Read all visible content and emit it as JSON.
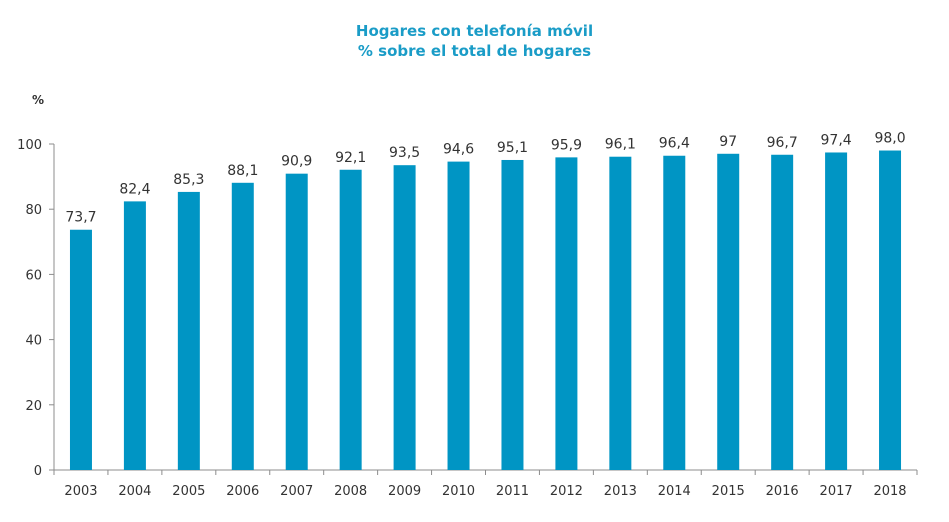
{
  "chart_data": {
    "type": "bar",
    "title": "Hogares con telefonía móvil",
    "subtitle": "% sobre el total de hogares",
    "ylabel": "%",
    "xlabel": "",
    "ylim": [
      0,
      100
    ],
    "yticks": [
      "0",
      "20",
      "40",
      "60",
      "80",
      "100"
    ],
    "grid": false,
    "legend": "none",
    "bar_color": "#0095c4",
    "title_color": "#1a9cc7",
    "categories": [
      "2003",
      "2004",
      "2005",
      "2006",
      "2007",
      "2008",
      "2009",
      "2010",
      "2011",
      "2012",
      "2013",
      "2014",
      "2015",
      "2016",
      "2017",
      "2018"
    ],
    "values": [
      73.7,
      82.4,
      85.3,
      88.1,
      90.9,
      92.1,
      93.5,
      94.6,
      95.1,
      95.9,
      96.1,
      96.4,
      97,
      96.7,
      97.4,
      98.0
    ],
    "value_labels": [
      "73,7",
      "82,4",
      "85,3",
      "88,1",
      "90,9",
      "92,1",
      "93,5",
      "94,6",
      "95,1",
      "95,9",
      "96,1",
      "96,4",
      "97",
      "96,7",
      "97,4",
      "98,0"
    ]
  }
}
